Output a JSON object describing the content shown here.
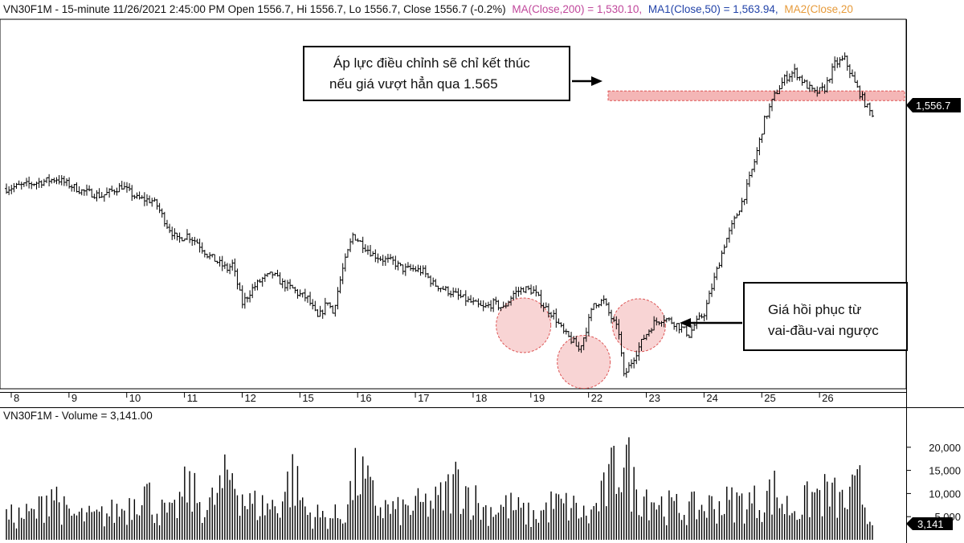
{
  "header": {
    "symbol_line": "VN30F1M - 15-minute 11/26/2021 2:45:00 PM Open 1556.7, Hi 1556.7, Lo 1556.7, Close 1556.7 (-0.2%)",
    "ma": "MA(Close,200) = 1,530.10,",
    "ma1": "MA1(Close,50) = 1,563.94,",
    "ma2": "MA2(Close,20",
    "ma_color": "#c0479b",
    "ma1_color": "#2243a8",
    "ma2_color": "#e69a3a"
  },
  "volume_header": "VN30F1M - Volume = 3,141.00",
  "price_tag": "1,556.7",
  "volume_tag": "3,141",
  "annotations": {
    "top_box": [
      "Áp lực điều chỉnh sẽ chỉ kết thúc",
      "nếu giá vượt hẳn qua 1.565"
    ],
    "bottom_box": [
      "Giá hồi phục từ",
      "vai-đầu-vai ngược"
    ]
  },
  "chart_data": [
    {
      "type": "candlestick",
      "x_labels": [
        "8",
        "9",
        "10",
        "11",
        "12",
        "15",
        "16",
        "17",
        "18",
        "19",
        "22",
        "23",
        "24",
        "25",
        "26"
      ],
      "last_close": 1556.7,
      "resistance_level": 1565,
      "ylim": [
        1445,
        1595
      ],
      "price_path": [
        [
          0,
          1527
        ],
        [
          10,
          1529
        ],
        [
          20,
          1531
        ],
        [
          30,
          1526
        ],
        [
          38,
          1524
        ],
        [
          46,
          1528
        ],
        [
          52,
          1523
        ],
        [
          58,
          1522
        ],
        [
          60,
          1520
        ],
        [
          64,
          1512
        ],
        [
          68,
          1506
        ],
        [
          72,
          1508
        ],
        [
          76,
          1505
        ],
        [
          80,
          1500
        ],
        [
          84,
          1497
        ],
        [
          88,
          1494
        ],
        [
          90,
          1496
        ],
        [
          94,
          1480
        ],
        [
          98,
          1486
        ],
        [
          102,
          1490
        ],
        [
          106,
          1492
        ],
        [
          110,
          1488
        ],
        [
          114,
          1486
        ],
        [
          116,
          1484
        ],
        [
          118,
          1483
        ],
        [
          120,
          1482
        ],
        [
          122,
          1478
        ],
        [
          124,
          1474
        ],
        [
          126,
          1477
        ],
        [
          128,
          1481
        ],
        [
          130,
          1476
        ],
        [
          134,
          1494
        ],
        [
          138,
          1508
        ],
        [
          142,
          1504
        ],
        [
          146,
          1500
        ],
        [
          150,
          1498
        ],
        [
          154,
          1497
        ],
        [
          158,
          1494
        ],
        [
          162,
          1494
        ],
        [
          166,
          1493
        ],
        [
          170,
          1488
        ],
        [
          174,
          1486
        ],
        [
          178,
          1484
        ],
        [
          182,
          1482
        ],
        [
          186,
          1480
        ],
        [
          190,
          1478
        ],
        [
          194,
          1480
        ],
        [
          198,
          1478
        ],
        [
          200,
          1481
        ],
        [
          202,
          1484
        ],
        [
          206,
          1486
        ],
        [
          210,
          1485
        ],
        [
          214,
          1479
        ],
        [
          218,
          1475
        ],
        [
          222,
          1468
        ],
        [
          226,
          1464
        ],
        [
          228,
          1461
        ],
        [
          230,
          1466
        ],
        [
          234,
          1480
        ],
        [
          238,
          1481
        ],
        [
          240,
          1476
        ],
        [
          244,
          1468
        ],
        [
          246,
          1450
        ],
        [
          248,
          1454
        ],
        [
          250,
          1458
        ],
        [
          254,
          1466
        ],
        [
          258,
          1472
        ],
        [
          262,
          1474
        ],
        [
          266,
          1472
        ],
        [
          270,
          1469
        ],
        [
          272,
          1467
        ],
        [
          274,
          1471
        ],
        [
          278,
          1476
        ],
        [
          282,
          1490
        ],
        [
          286,
          1504
        ],
        [
          290,
          1514
        ],
        [
          294,
          1524
        ],
        [
          298,
          1538
        ],
        [
          302,
          1555
        ],
        [
          306,
          1565
        ],
        [
          310,
          1572
        ],
        [
          314,
          1575
        ],
        [
          318,
          1570
        ],
        [
          322,
          1566
        ],
        [
          326,
          1568
        ],
        [
          330,
          1578
        ],
        [
          334,
          1580
        ],
        [
          338,
          1570
        ],
        [
          342,
          1562
        ],
        [
          345,
          1556.7
        ]
      ]
    },
    {
      "type": "bar",
      "title": "VN30F1M - Volume = 3,141.00",
      "y_ticks": [
        5000,
        10000,
        15000,
        20000
      ],
      "ylim": [
        0,
        25000
      ],
      "last_value": 3141,
      "volume_path": [
        [
          0,
          6000
        ],
        [
          12,
          7000
        ],
        [
          18,
          14000
        ],
        [
          24,
          6500
        ],
        [
          36,
          6000
        ],
        [
          48,
          8500
        ],
        [
          54,
          14500
        ],
        [
          60,
          8000
        ],
        [
          66,
          6500
        ],
        [
          72,
          14000
        ],
        [
          80,
          8000
        ],
        [
          90,
          18000
        ],
        [
          96,
          9500
        ],
        [
          102,
          9000
        ],
        [
          108,
          9000
        ],
        [
          114,
          17000
        ],
        [
          120,
          7000
        ],
        [
          128,
          6000
        ],
        [
          134,
          6500
        ],
        [
          140,
          18000
        ],
        [
          148,
          9000
        ],
        [
          156,
          7500
        ],
        [
          164,
          9000
        ],
        [
          172,
          10000
        ],
        [
          180,
          16000
        ],
        [
          190,
          8000
        ],
        [
          200,
          9000
        ],
        [
          210,
          6000
        ],
        [
          218,
          9500
        ],
        [
          226,
          8500
        ],
        [
          232,
          6000
        ],
        [
          238,
          12000
        ],
        [
          242,
          18000
        ],
        [
          246,
          23500
        ],
        [
          250,
          14000
        ],
        [
          256,
          12000
        ],
        [
          262,
          9000
        ],
        [
          270,
          8000
        ],
        [
          280,
          9000
        ],
        [
          290,
          10000
        ],
        [
          300,
          10000
        ],
        [
          306,
          13000
        ],
        [
          310,
          9000
        ],
        [
          316,
          8500
        ],
        [
          322,
          12000
        ],
        [
          328,
          12000
        ],
        [
          334,
          9500
        ],
        [
          340,
          14000
        ],
        [
          345,
          3141
        ]
      ]
    }
  ]
}
